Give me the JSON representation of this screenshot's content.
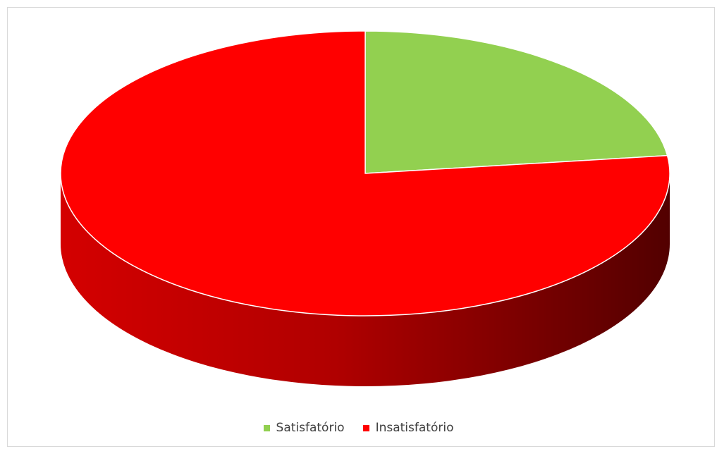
{
  "chart_data": {
    "type": "pie",
    "title": "",
    "legend_position": "bottom",
    "slices": [
      {
        "label": "Satisfatório",
        "value": 23,
        "color": "#92d050"
      },
      {
        "label": "Insatisfatório",
        "value": 77,
        "color": "#ff0000"
      }
    ]
  }
}
